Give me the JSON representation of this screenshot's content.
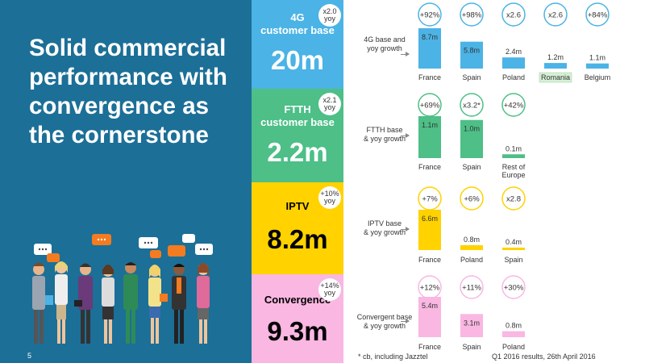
{
  "headline": [
    "Solid commercial",
    "performance with",
    "convergence as",
    "the cornerstone"
  ],
  "page_number": "5",
  "footnote": "* cb, including Jazztel",
  "footer_right": "Q1 2016 results, 26th April 2016",
  "colors": {
    "panel": "#1c6f97",
    "4g": "#4bb3e5",
    "ftth": "#4dbf87",
    "iptv": "#ffd200",
    "convergence": "#f9b7e2"
  },
  "metrics": [
    {
      "id": "4g",
      "label": "4G\ncustomer base",
      "value": "20m",
      "badge": [
        "x2.0",
        "yoy"
      ]
    },
    {
      "id": "ftth",
      "label": "FTTH\ncustomer base",
      "value": "2.2m",
      "badge": [
        "x2.1",
        "yoy"
      ]
    },
    {
      "id": "iptv",
      "label": "IPTV",
      "value": "8.2m",
      "badge": [
        "+10%",
        "yoy"
      ]
    },
    {
      "id": "conv",
      "label": "Convergence",
      "value": "9.3m",
      "badge": [
        "+14%",
        "yoy"
      ]
    }
  ],
  "row_labels": {
    "4g": "4G base and\nyoy growth",
    "ftth": "FTTH base\n& yoy growth",
    "iptv": "IPTV base\n& yoy growth",
    "conv": "Convergent base\n& yoy growth"
  },
  "chart_data": [
    {
      "type": "bar",
      "title": "4G base and yoy growth",
      "unit": "m",
      "color": "#4bb3e5",
      "categories": [
        "France",
        "Spain",
        "Poland",
        "Romania",
        "Belgium"
      ],
      "values": [
        8.7,
        5.8,
        2.4,
        1.2,
        1.1
      ],
      "labels": [
        "8.7m",
        "5.8m",
        "2.4m",
        "1.2m",
        "1.1m"
      ],
      "growth": [
        "+92%",
        "+98%",
        "x2.6",
        "x2.6",
        "+84%"
      ],
      "highlight": "Romania"
    },
    {
      "type": "bar",
      "title": "FTTH base & yoy growth",
      "unit": "m",
      "color": "#4dbf87",
      "categories": [
        "France",
        "Spain",
        "Rest of\nEurope"
      ],
      "values": [
        1.1,
        1.0,
        0.1
      ],
      "labels": [
        "1.1m",
        "1.0m",
        "0.1m"
      ],
      "growth": [
        "+69%",
        "x3.2*",
        "+42%"
      ]
    },
    {
      "type": "bar",
      "title": "IPTV base & yoy growth",
      "unit": "m",
      "color": "#ffd200",
      "categories": [
        "France",
        "Poland",
        "Spain"
      ],
      "values": [
        6.6,
        0.8,
        0.4
      ],
      "labels": [
        "6.6m",
        "0.8m",
        "0.4m"
      ],
      "growth": [
        "+7%",
        "+6%",
        "x2.8"
      ]
    },
    {
      "type": "bar",
      "title": "Convergent base & yoy growth",
      "unit": "m",
      "color": "#f9b7e2",
      "categories": [
        "France",
        "Spain",
        "Poland"
      ],
      "values": [
        5.4,
        3.1,
        0.8
      ],
      "labels": [
        "5.4m",
        "3.1m",
        "0.8m"
      ],
      "growth": [
        "+12%",
        "+11%",
        "+30%"
      ]
    }
  ]
}
